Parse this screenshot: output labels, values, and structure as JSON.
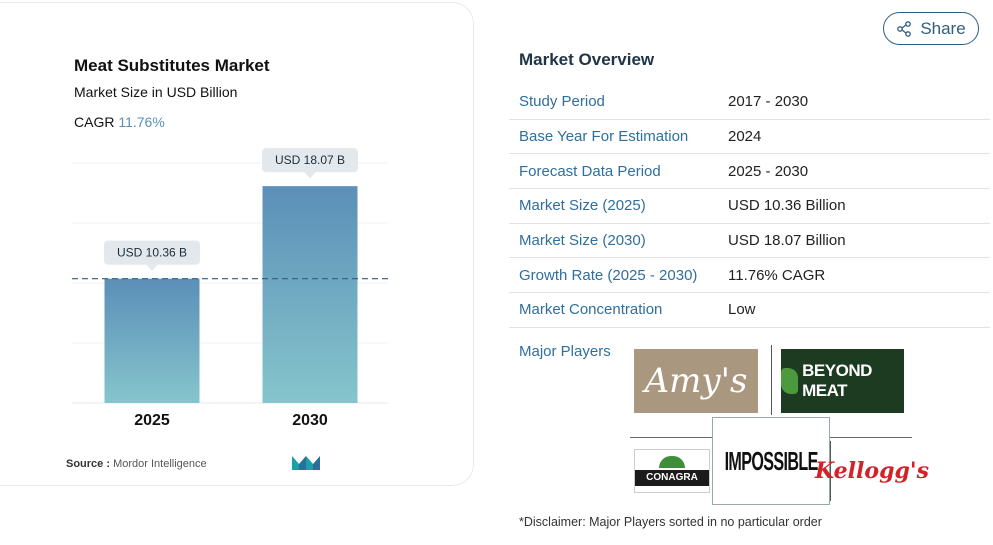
{
  "chart_card": {
    "title": "Meat Substitutes Market",
    "subtitle": "Market Size in USD Billion",
    "cagr_label": "CAGR",
    "cagr_value": "11.76%",
    "source_label": "Source :",
    "source_value": "Mordor Intelligence"
  },
  "chart_data": {
    "type": "bar",
    "categories": [
      "2025",
      "2030"
    ],
    "values": [
      10.36,
      18.07
    ],
    "data_labels": [
      "USD 10.36 B",
      "USD 18.07 B"
    ],
    "title": "Meat Substitutes Market",
    "subtitle": "Market Size in USD Billion",
    "xlabel": "",
    "ylabel": "",
    "ylim": [
      0,
      20
    ],
    "grid": true,
    "reference_line_value": 10.36,
    "colors": {
      "bar_top": "#5b8fb8",
      "bar_bottom": "#86c5cc",
      "label_bg": "#e2e8ec",
      "dashed_line": "#2f5f7d"
    }
  },
  "header": {
    "share_label": "Share",
    "accent": "#2f5f7d"
  },
  "overview": {
    "title": "Market Overview",
    "rows": [
      {
        "key": "Study Period",
        "value": "2017 - 2030"
      },
      {
        "key": "Base Year For Estimation",
        "value": "2024"
      },
      {
        "key": "Forecast Data Period",
        "value": "2025 - 2030"
      },
      {
        "key": "Market Size (2025)",
        "value": "USD 10.36 Billion"
      },
      {
        "key": "Market Size (2030)",
        "value": "USD 18.07 Billion"
      },
      {
        "key": "Growth Rate (2025 - 2030)",
        "value": "11.76% CAGR"
      },
      {
        "key": "Market Concentration",
        "value": "Low"
      }
    ]
  },
  "players": {
    "label": "Major Players",
    "logos": {
      "amys": "Amy's",
      "beyond": "BEYOND MEAT",
      "conagra": "CONAGRA",
      "impossible": "IMPOSSIBLE",
      "kelloggs": "Kellogg's"
    }
  },
  "disclaimer": "*Disclaimer: Major Players sorted in no particular order"
}
